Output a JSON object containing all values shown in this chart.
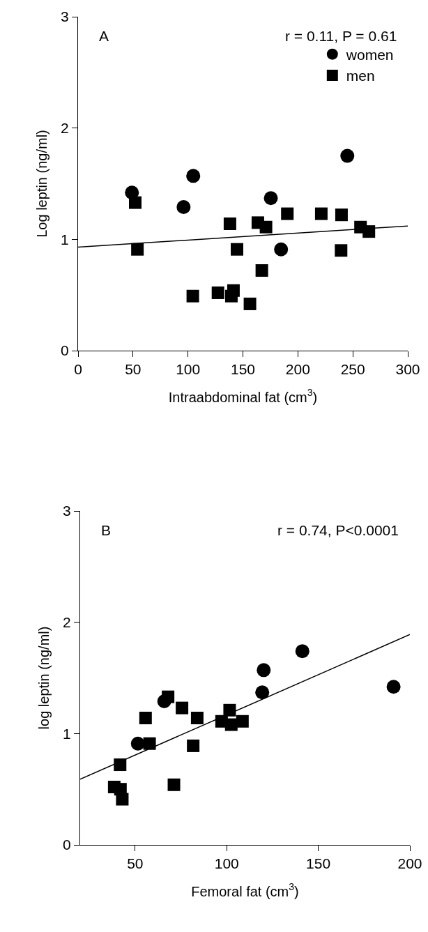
{
  "chart_data": [
    {
      "type": "scatter",
      "xlabel": "Intraabdominal fat (cm$^{3}$)",
      "ylabel": "Log leptin (ng/ml)",
      "annotations": [
        "A",
        "r = 0.11, P = 0.61"
      ],
      "xlim": [
        0,
        300
      ],
      "xticks": [
        0,
        50,
        100,
        150,
        200,
        250,
        300
      ],
      "ylim": [
        0,
        3
      ],
      "yticks": [
        0,
        1,
        2,
        3
      ],
      "grid": false,
      "legend": "top right",
      "series": [
        {
          "name": "women",
          "color": "#000000",
          "marker": "circle",
          "x": [
            49,
            104.8,
            96,
            175.4,
            245,
            184.7
          ],
          "values": [
            1.42,
            1.57,
            1.29,
            1.37,
            1.75,
            0.91
          ]
        },
        {
          "name": "men",
          "color": "#000000",
          "marker": "square",
          "x": [
            54,
            52,
            138.2,
            163.6,
            171,
            190.4,
            221.3,
            239.7,
            257,
            264.6,
            144.6,
            239.3,
            167.2,
            104.4,
            127.3,
            141.4,
            139.5,
            156.4
          ],
          "values": [
            0.91,
            1.33,
            1.14,
            1.15,
            1.11,
            1.23,
            1.23,
            1.22,
            1.11,
            1.07,
            0.91,
            0.9,
            0.72,
            0.49,
            0.52,
            0.54,
            0.49,
            0.42
          ]
        },
        {
          "type": "line",
          "color": "#000000",
          "line_style": "solid",
          "x": [
            0,
            300
          ],
          "values": [
            0.93,
            1.12
          ]
        }
      ]
    },
    {
      "type": "scatter",
      "xlabel": "Femoral fat (cm$^{3}$)",
      "ylabel": "log leptin (ng/ml)",
      "annotations": [
        "B",
        "r = 0.74, P<0.0001"
      ],
      "xlim": [
        20,
        200
      ],
      "xticks": [
        50,
        100,
        150,
        200
      ],
      "ylim": [
        0,
        3
      ],
      "yticks": [
        0,
        1,
        2,
        3
      ],
      "grid": false,
      "series": [
        {
          "color": "#000000",
          "marker": "circle",
          "x": [
            141.3,
            120.2,
            119.4,
            191.1,
            65.9,
            51.5
          ],
          "values": [
            1.74,
            1.57,
            1.37,
            1.42,
            1.29,
            0.91
          ]
        },
        {
          "color": "#000000",
          "marker": "square",
          "x": [
            68,
            75.6,
            83.9,
            55.7,
            101.6,
            97.2,
            102.5,
            108.6,
            57.9,
            81.7,
            41.8,
            71.2,
            38.6,
            42,
            43
          ],
          "values": [
            1.33,
            1.23,
            1.14,
            1.14,
            1.21,
            1.11,
            1.08,
            1.11,
            0.91,
            0.89,
            0.72,
            0.54,
            0.52,
            0.5,
            0.41
          ]
        },
        {
          "type": "line",
          "color": "#000000",
          "line_style": "solid",
          "x": [
            20,
            200
          ],
          "values": [
            0.59,
            1.89
          ]
        }
      ]
    }
  ]
}
